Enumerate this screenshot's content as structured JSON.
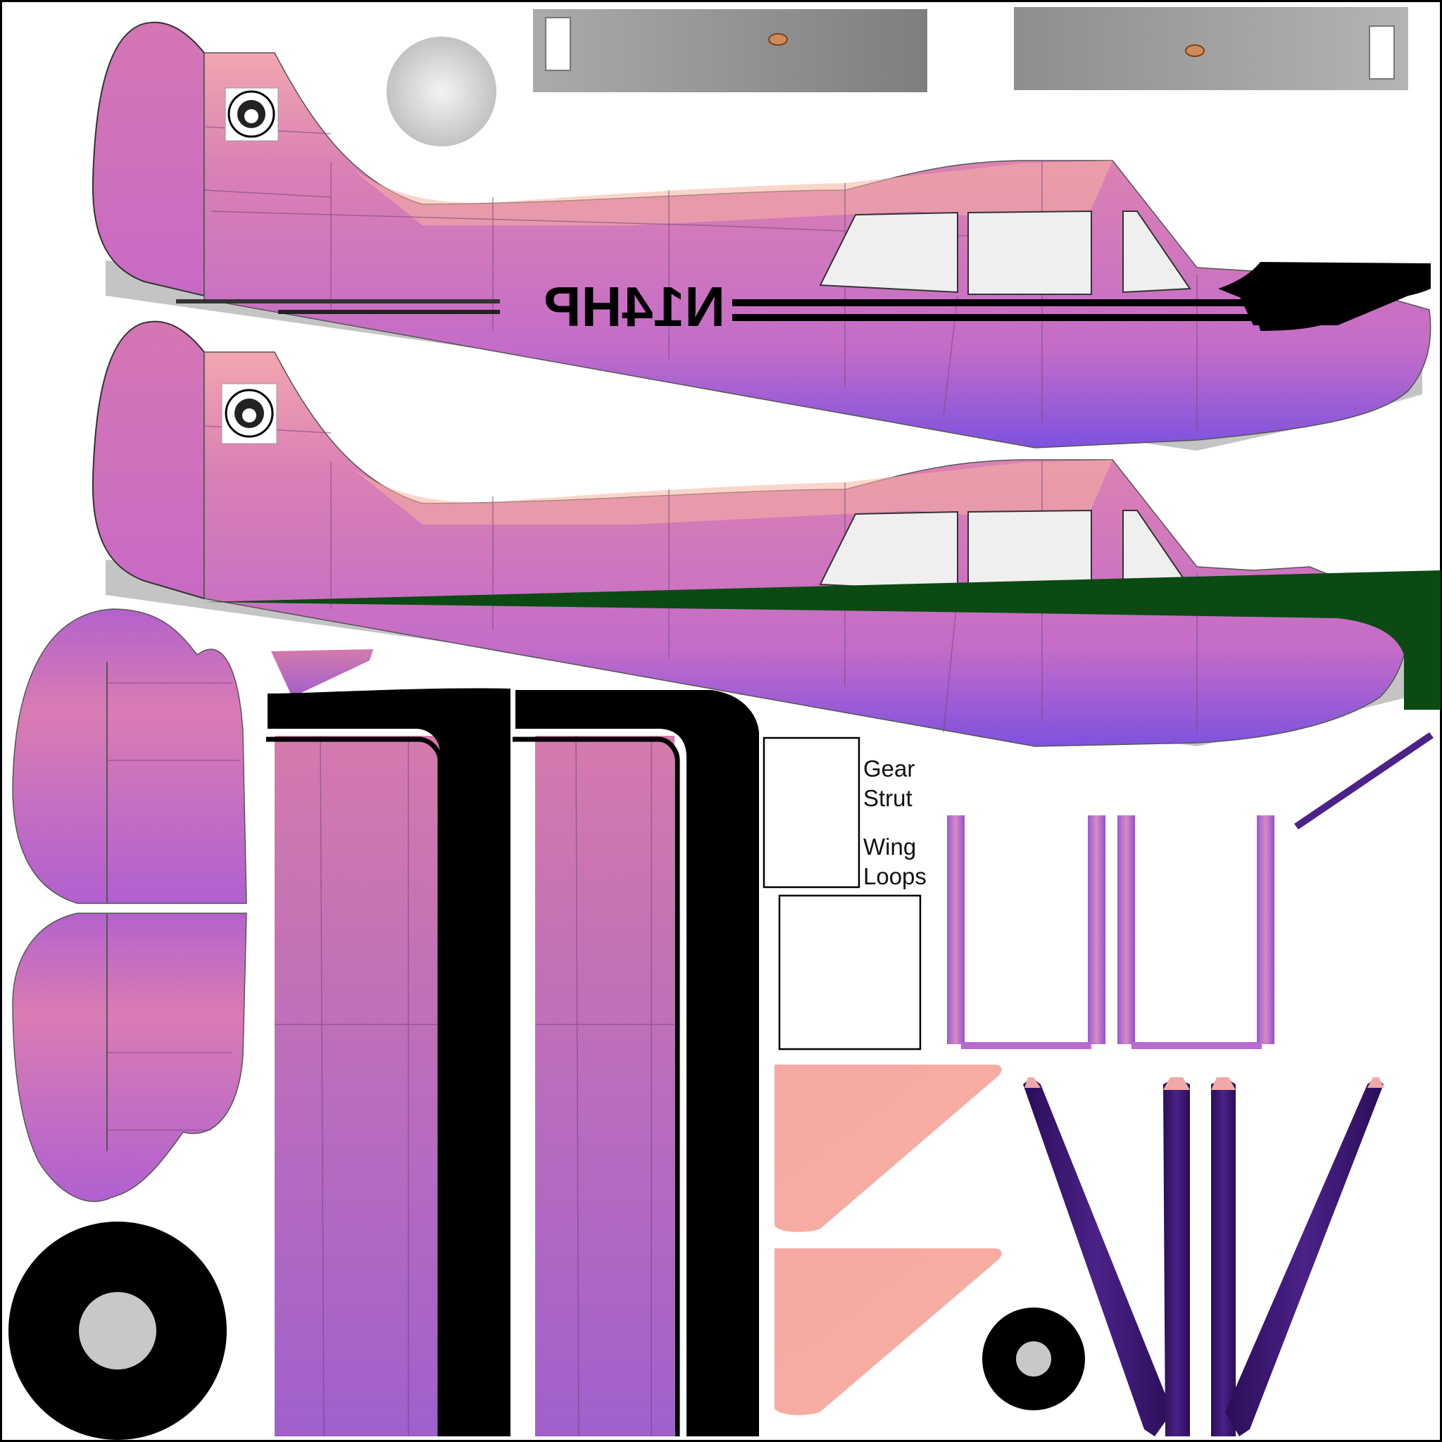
{
  "registration": "N14HP",
  "labels": {
    "gear": "Gear",
    "strut": "Strut",
    "wing": "Wing",
    "loops": "Loops"
  },
  "colors": {
    "fuselage_top": "#F0A0B8",
    "fuselage_mid": "#D478B8",
    "fuselage_bottom": "#8A58D8",
    "peach": "#F8B0A0",
    "stripe": "#000000",
    "green_stripe": "#0B4A12",
    "strut_dark": "#3A1868",
    "grey": "#9A9A9A",
    "window": "#EFEFEF"
  }
}
